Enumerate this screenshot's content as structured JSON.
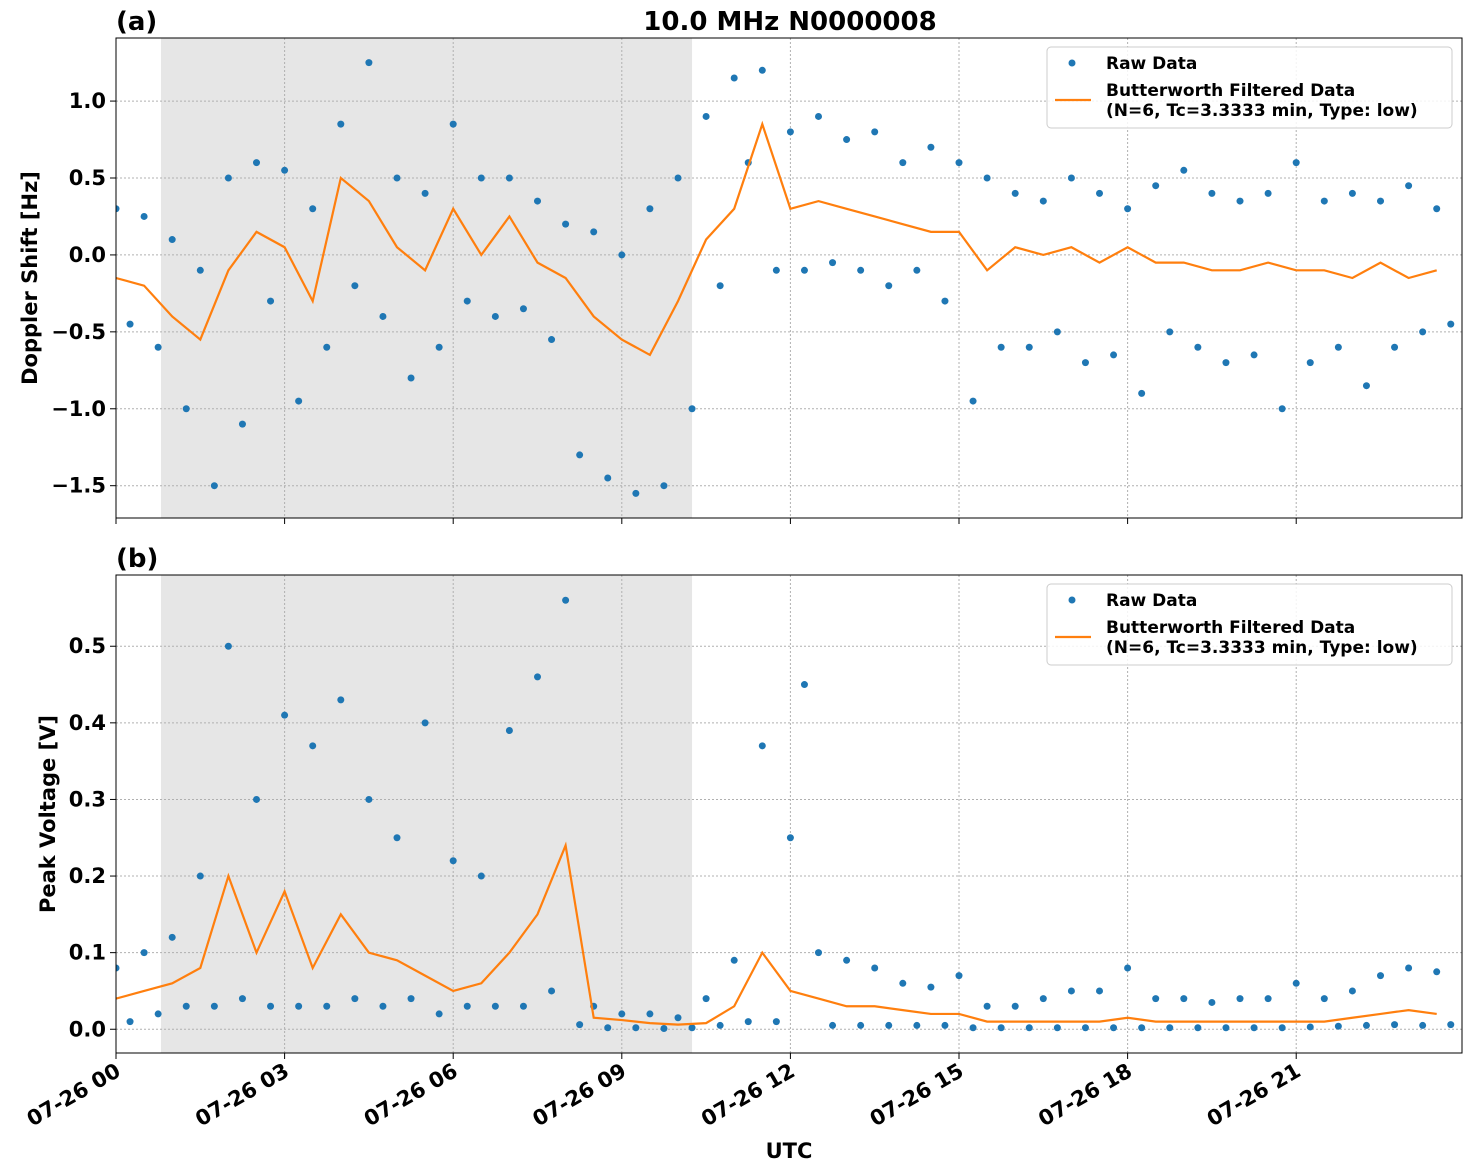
{
  "chart_data": [
    {
      "type": "line",
      "panel_label": "(a)",
      "title": "10.0 MHz N0000008",
      "ylabel": "Doppler Shift [Hz]",
      "xlim": [
        0,
        23.95
      ],
      "ylim": [
        -1.71,
        1.41
      ],
      "xticks": [
        0,
        3,
        6,
        9,
        12,
        15,
        18,
        21
      ],
      "yticks": [
        {
          "value": -1.5,
          "label": "−1.5"
        },
        {
          "value": -1.0,
          "label": "−1.0"
        },
        {
          "value": -0.5,
          "label": "−0.5"
        },
        {
          "value": 0.0,
          "label": "0.0"
        },
        {
          "value": 0.5,
          "label": "0.5"
        },
        {
          "value": 1.0,
          "label": "1.0"
        }
      ],
      "grid": true,
      "legend": "upper right",
      "shade": {
        "x": [
          0.8,
          10.25
        ],
        "color": "#e6e6e6"
      },
      "series": [
        {
          "name": "Raw Data",
          "kind": "scatter",
          "color": "#1f77b4",
          "x": [
            0,
            0.25,
            0.5,
            0.75,
            1,
            1.25,
            1.5,
            1.75,
            2,
            2.25,
            2.5,
            2.75,
            3,
            3.25,
            3.5,
            3.75,
            4,
            4.25,
            4.5,
            4.75,
            5,
            5.25,
            5.5,
            5.75,
            6,
            6.25,
            6.5,
            6.75,
            7,
            7.25,
            7.5,
            7.75,
            8,
            8.25,
            8.5,
            8.75,
            9,
            9.25,
            9.5,
            9.75,
            10,
            10.25,
            10.5,
            10.75,
            11,
            11.25,
            11.5,
            11.75,
            12,
            12.25,
            12.5,
            12.75,
            13,
            13.25,
            13.5,
            13.75,
            14,
            14.25,
            14.5,
            14.75,
            15,
            15.25,
            15.5,
            15.75,
            16,
            16.25,
            16.5,
            16.75,
            17,
            17.25,
            17.5,
            17.75,
            18,
            18.25,
            18.5,
            18.75,
            19,
            19.25,
            19.5,
            19.75,
            20,
            20.25,
            20.5,
            20.75,
            21,
            21.25,
            21.5,
            21.75,
            22,
            22.25,
            22.5,
            22.75,
            23,
            23.25,
            23.5,
            23.75
          ],
          "values": [
            0.3,
            -0.45,
            0.25,
            -0.6,
            0.1,
            -1.0,
            -0.1,
            -1.5,
            0.5,
            -1.1,
            0.6,
            -0.3,
            0.55,
            -0.95,
            0.3,
            -0.6,
            0.85,
            -0.2,
            1.25,
            -0.4,
            0.5,
            -0.8,
            0.4,
            -0.6,
            0.85,
            -0.3,
            0.5,
            -0.4,
            0.5,
            -0.35,
            0.35,
            -0.55,
            0.2,
            -1.3,
            0.15,
            -1.45,
            0.0,
            -1.55,
            0.3,
            -1.5,
            0.5,
            -1.0,
            0.9,
            -0.2,
            1.15,
            0.6,
            1.2,
            -0.1,
            0.8,
            -0.1,
            0.9,
            -0.05,
            0.75,
            -0.1,
            0.8,
            -0.2,
            0.6,
            -0.1,
            0.7,
            -0.3,
            0.6,
            -0.95,
            0.5,
            -0.6,
            0.4,
            -0.6,
            0.35,
            -0.5,
            0.5,
            -0.7,
            0.4,
            -0.65,
            0.3,
            -0.9,
            0.45,
            -0.5,
            0.55,
            -0.6,
            0.4,
            -0.7,
            0.35,
            -0.65,
            0.4,
            -1.0,
            0.6,
            -0.7,
            0.35,
            -0.6,
            0.4,
            -0.85,
            0.35,
            -0.6,
            0.45,
            -0.5,
            0.3,
            -0.45
          ]
        },
        {
          "name": "Butterworth Filtered Data\n(N=6, Tc=3.3333 min, Type: low)",
          "kind": "line",
          "color": "#ff7f0e",
          "x": [
            0,
            0.5,
            1,
            1.5,
            2,
            2.5,
            3,
            3.5,
            4,
            4.5,
            5,
            5.5,
            6,
            6.5,
            7,
            7.5,
            8,
            8.5,
            9,
            9.5,
            10,
            10.5,
            11,
            11.5,
            12,
            12.5,
            13,
            13.5,
            14,
            14.5,
            15,
            15.5,
            16,
            16.5,
            17,
            17.5,
            18,
            18.5,
            19,
            19.5,
            20,
            20.5,
            21,
            21.5,
            22,
            22.5,
            23,
            23.5
          ],
          "values": [
            -0.15,
            -0.2,
            -0.4,
            -0.55,
            -0.1,
            0.15,
            0.05,
            -0.3,
            0.5,
            0.35,
            0.05,
            -0.1,
            0.3,
            0.0,
            0.25,
            -0.05,
            -0.15,
            -0.4,
            -0.55,
            -0.65,
            -0.3,
            0.1,
            0.3,
            0.85,
            0.3,
            0.35,
            0.3,
            0.25,
            0.2,
            0.15,
            0.15,
            -0.1,
            0.05,
            0.0,
            0.05,
            -0.05,
            0.05,
            -0.05,
            -0.05,
            -0.1,
            -0.1,
            -0.05,
            -0.1,
            -0.1,
            -0.15,
            -0.05,
            -0.15,
            -0.1
          ]
        }
      ]
    },
    {
      "type": "line",
      "panel_label": "(b)",
      "ylabel": "Peak Voltage [V]",
      "xlabel": "UTC",
      "xlim": [
        0,
        23.95
      ],
      "ylim": [
        -0.031,
        0.593
      ],
      "xticks": [
        {
          "value": 0,
          "label": "07-26 00"
        },
        {
          "value": 3,
          "label": "07-26 03"
        },
        {
          "value": 6,
          "label": "07-26 06"
        },
        {
          "value": 9,
          "label": "07-26 09"
        },
        {
          "value": 12,
          "label": "07-26 12"
        },
        {
          "value": 15,
          "label": "07-26 15"
        },
        {
          "value": 18,
          "label": "07-26 18"
        },
        {
          "value": 21,
          "label": "07-26 21"
        }
      ],
      "yticks": [
        {
          "value": 0.0,
          "label": "0.0"
        },
        0.1,
        0.2,
        0.3,
        0.4,
        0.5
      ],
      "grid": true,
      "legend": "upper right",
      "shade": {
        "x": [
          0.8,
          10.25
        ],
        "color": "#e6e6e6"
      },
      "series": [
        {
          "name": "Raw Data",
          "kind": "scatter",
          "color": "#1f77b4",
          "x": [
            0,
            0.25,
            0.5,
            0.75,
            1,
            1.25,
            1.5,
            1.75,
            2,
            2.25,
            2.5,
            2.75,
            3,
            3.25,
            3.5,
            3.75,
            4,
            4.25,
            4.5,
            4.75,
            5,
            5.25,
            5.5,
            5.75,
            6,
            6.25,
            6.5,
            6.75,
            7,
            7.25,
            7.5,
            7.75,
            8,
            8.25,
            8.5,
            8.75,
            9,
            9.25,
            9.5,
            9.75,
            10,
            10.25,
            10.5,
            10.75,
            11,
            11.25,
            11.5,
            11.75,
            12,
            12.25,
            12.5,
            12.75,
            13,
            13.25,
            13.5,
            13.75,
            14,
            14.25,
            14.5,
            14.75,
            15,
            15.25,
            15.5,
            15.75,
            16,
            16.25,
            16.5,
            16.75,
            17,
            17.25,
            17.5,
            17.75,
            18,
            18.25,
            18.5,
            18.75,
            19,
            19.25,
            19.5,
            19.75,
            20,
            20.25,
            20.5,
            20.75,
            21,
            21.25,
            21.5,
            21.75,
            22,
            22.25,
            22.5,
            22.75,
            23,
            23.25,
            23.5,
            23.75
          ],
          "values": [
            0.08,
            0.01,
            0.1,
            0.02,
            0.12,
            0.03,
            0.2,
            0.03,
            0.5,
            0.04,
            0.3,
            0.03,
            0.41,
            0.03,
            0.37,
            0.03,
            0.43,
            0.04,
            0.3,
            0.03,
            0.25,
            0.04,
            0.4,
            0.02,
            0.22,
            0.03,
            0.2,
            0.03,
            0.39,
            0.03,
            0.46,
            0.05,
            0.56,
            0.006,
            0.03,
            0.002,
            0.02,
            0.002,
            0.02,
            0.001,
            0.015,
            0.002,
            0.04,
            0.005,
            0.09,
            0.01,
            0.37,
            0.01,
            0.25,
            0.45,
            0.1,
            0.005,
            0.09,
            0.005,
            0.08,
            0.005,
            0.06,
            0.005,
            0.055,
            0.005,
            0.07,
            0.002,
            0.03,
            0.002,
            0.03,
            0.002,
            0.04,
            0.002,
            0.05,
            0.002,
            0.05,
            0.002,
            0.08,
            0.002,
            0.04,
            0.002,
            0.04,
            0.002,
            0.035,
            0.002,
            0.04,
            0.002,
            0.04,
            0.002,
            0.06,
            0.003,
            0.04,
            0.004,
            0.05,
            0.005,
            0.07,
            0.006,
            0.08,
            0.005,
            0.075,
            0.006
          ]
        },
        {
          "name": "Butterworth Filtered Data\n(N=6, Tc=3.3333 min, Type: low)",
          "kind": "line",
          "color": "#ff7f0e",
          "x": [
            0,
            0.5,
            1,
            1.5,
            2,
            2.5,
            3,
            3.5,
            4,
            4.5,
            5,
            5.5,
            6,
            6.5,
            7,
            7.5,
            8,
            8.5,
            9,
            9.5,
            10,
            10.5,
            11,
            11.5,
            12,
            12.5,
            13,
            13.5,
            14,
            14.5,
            15,
            15.5,
            16,
            16.5,
            17,
            17.5,
            18,
            18.5,
            19,
            19.5,
            20,
            20.5,
            21,
            21.5,
            22,
            22.5,
            23,
            23.5
          ],
          "values": [
            0.04,
            0.05,
            0.06,
            0.08,
            0.2,
            0.1,
            0.18,
            0.08,
            0.15,
            0.1,
            0.09,
            0.07,
            0.05,
            0.06,
            0.1,
            0.15,
            0.24,
            0.015,
            0.012,
            0.008,
            0.006,
            0.008,
            0.03,
            0.1,
            0.05,
            0.04,
            0.03,
            0.03,
            0.025,
            0.02,
            0.02,
            0.01,
            0.01,
            0.01,
            0.01,
            0.01,
            0.015,
            0.01,
            0.01,
            0.01,
            0.01,
            0.01,
            0.01,
            0.01,
            0.015,
            0.02,
            0.025,
            0.02
          ]
        }
      ]
    }
  ]
}
